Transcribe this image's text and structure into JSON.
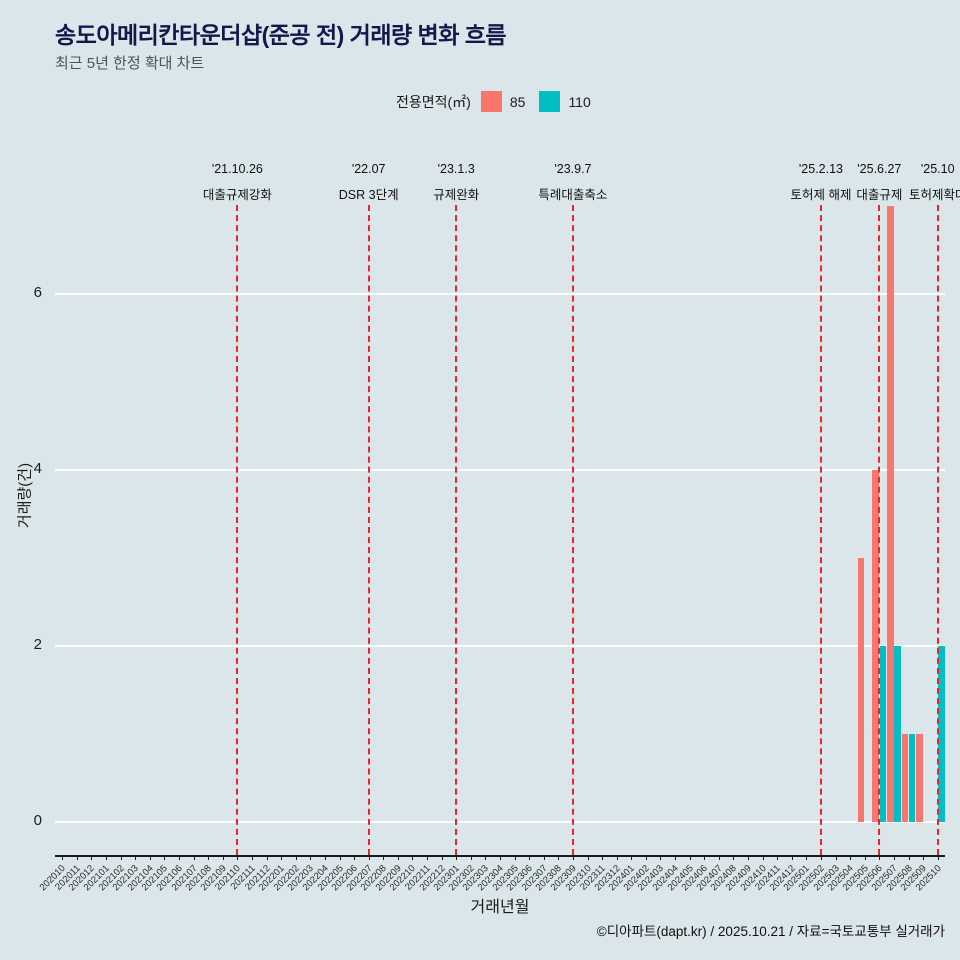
{
  "title": "송도아메리칸타운더샵(준공 전) 거래량 변화 흐름",
  "subtitle": "최근 5년 한정 확대 차트",
  "legend": {
    "label": "전용면적(㎡)",
    "items": [
      {
        "name": "85",
        "color": "#f8766d"
      },
      {
        "name": "110",
        "color": "#00bfc4"
      }
    ]
  },
  "footer": "©디아파트(dapt.kr) / 2025.10.21 / 자료=국토교통부 실거래가",
  "chart_data": {
    "type": "bar",
    "title": "송도아메리칸타운더샵(준공 전) 거래량 변화 흐름",
    "subtitle": "최근 5년 한정 확대 차트",
    "xlabel": "거래년월",
    "ylabel": "거래량(건)",
    "ylim": [
      0,
      7
    ],
    "yticks": [
      0,
      2,
      4,
      6
    ],
    "grid": true,
    "legend_position": "top",
    "categories": [
      "202010",
      "202011",
      "202012",
      "202101",
      "202102",
      "202103",
      "202104",
      "202105",
      "202106",
      "202107",
      "202108",
      "202109",
      "202110",
      "202111",
      "202112",
      "202201",
      "202202",
      "202203",
      "202204",
      "202205",
      "202206",
      "202207",
      "202208",
      "202209",
      "202210",
      "202211",
      "202212",
      "202301",
      "202302",
      "202303",
      "202304",
      "202305",
      "202306",
      "202307",
      "202308",
      "202309",
      "202310",
      "202311",
      "202312",
      "202401",
      "202402",
      "202403",
      "202404",
      "202405",
      "202406",
      "202407",
      "202408",
      "202409",
      "202410",
      "202411",
      "202412",
      "202501",
      "202502",
      "202503",
      "202504",
      "202505",
      "202506",
      "202507",
      "202508",
      "202509",
      "202510"
    ],
    "series": [
      {
        "name": "85",
        "color": "#f8766d",
        "points": {
          "202505": 3,
          "202506": 4,
          "202507": 7,
          "202508": 1,
          "202509": 1
        }
      },
      {
        "name": "110",
        "color": "#00bfc4",
        "points": {
          "202506": 2,
          "202507": 2,
          "202508": 1,
          "202510": 2
        }
      }
    ],
    "events": [
      {
        "x": "202110",
        "date": "'21.10.26",
        "label": "대출규제강화"
      },
      {
        "x": "202207",
        "date": "'22.07",
        "label": "DSR 3단계"
      },
      {
        "x": "202301",
        "date": "'23.1.3",
        "label": "규제완화"
      },
      {
        "x": "202309",
        "date": "'23.9.7",
        "label": "특례대출축소"
      },
      {
        "x": "202502",
        "date": "'25.2.13",
        "label": "토허제 해제"
      },
      {
        "x": "202506",
        "date": "'25.6.27",
        "label": "대출규제"
      },
      {
        "x": "202510",
        "date": "'25.10",
        "label": "토허제확대"
      }
    ],
    "event_line_color": "#e9252b",
    "background_color": "#dae6e9"
  }
}
